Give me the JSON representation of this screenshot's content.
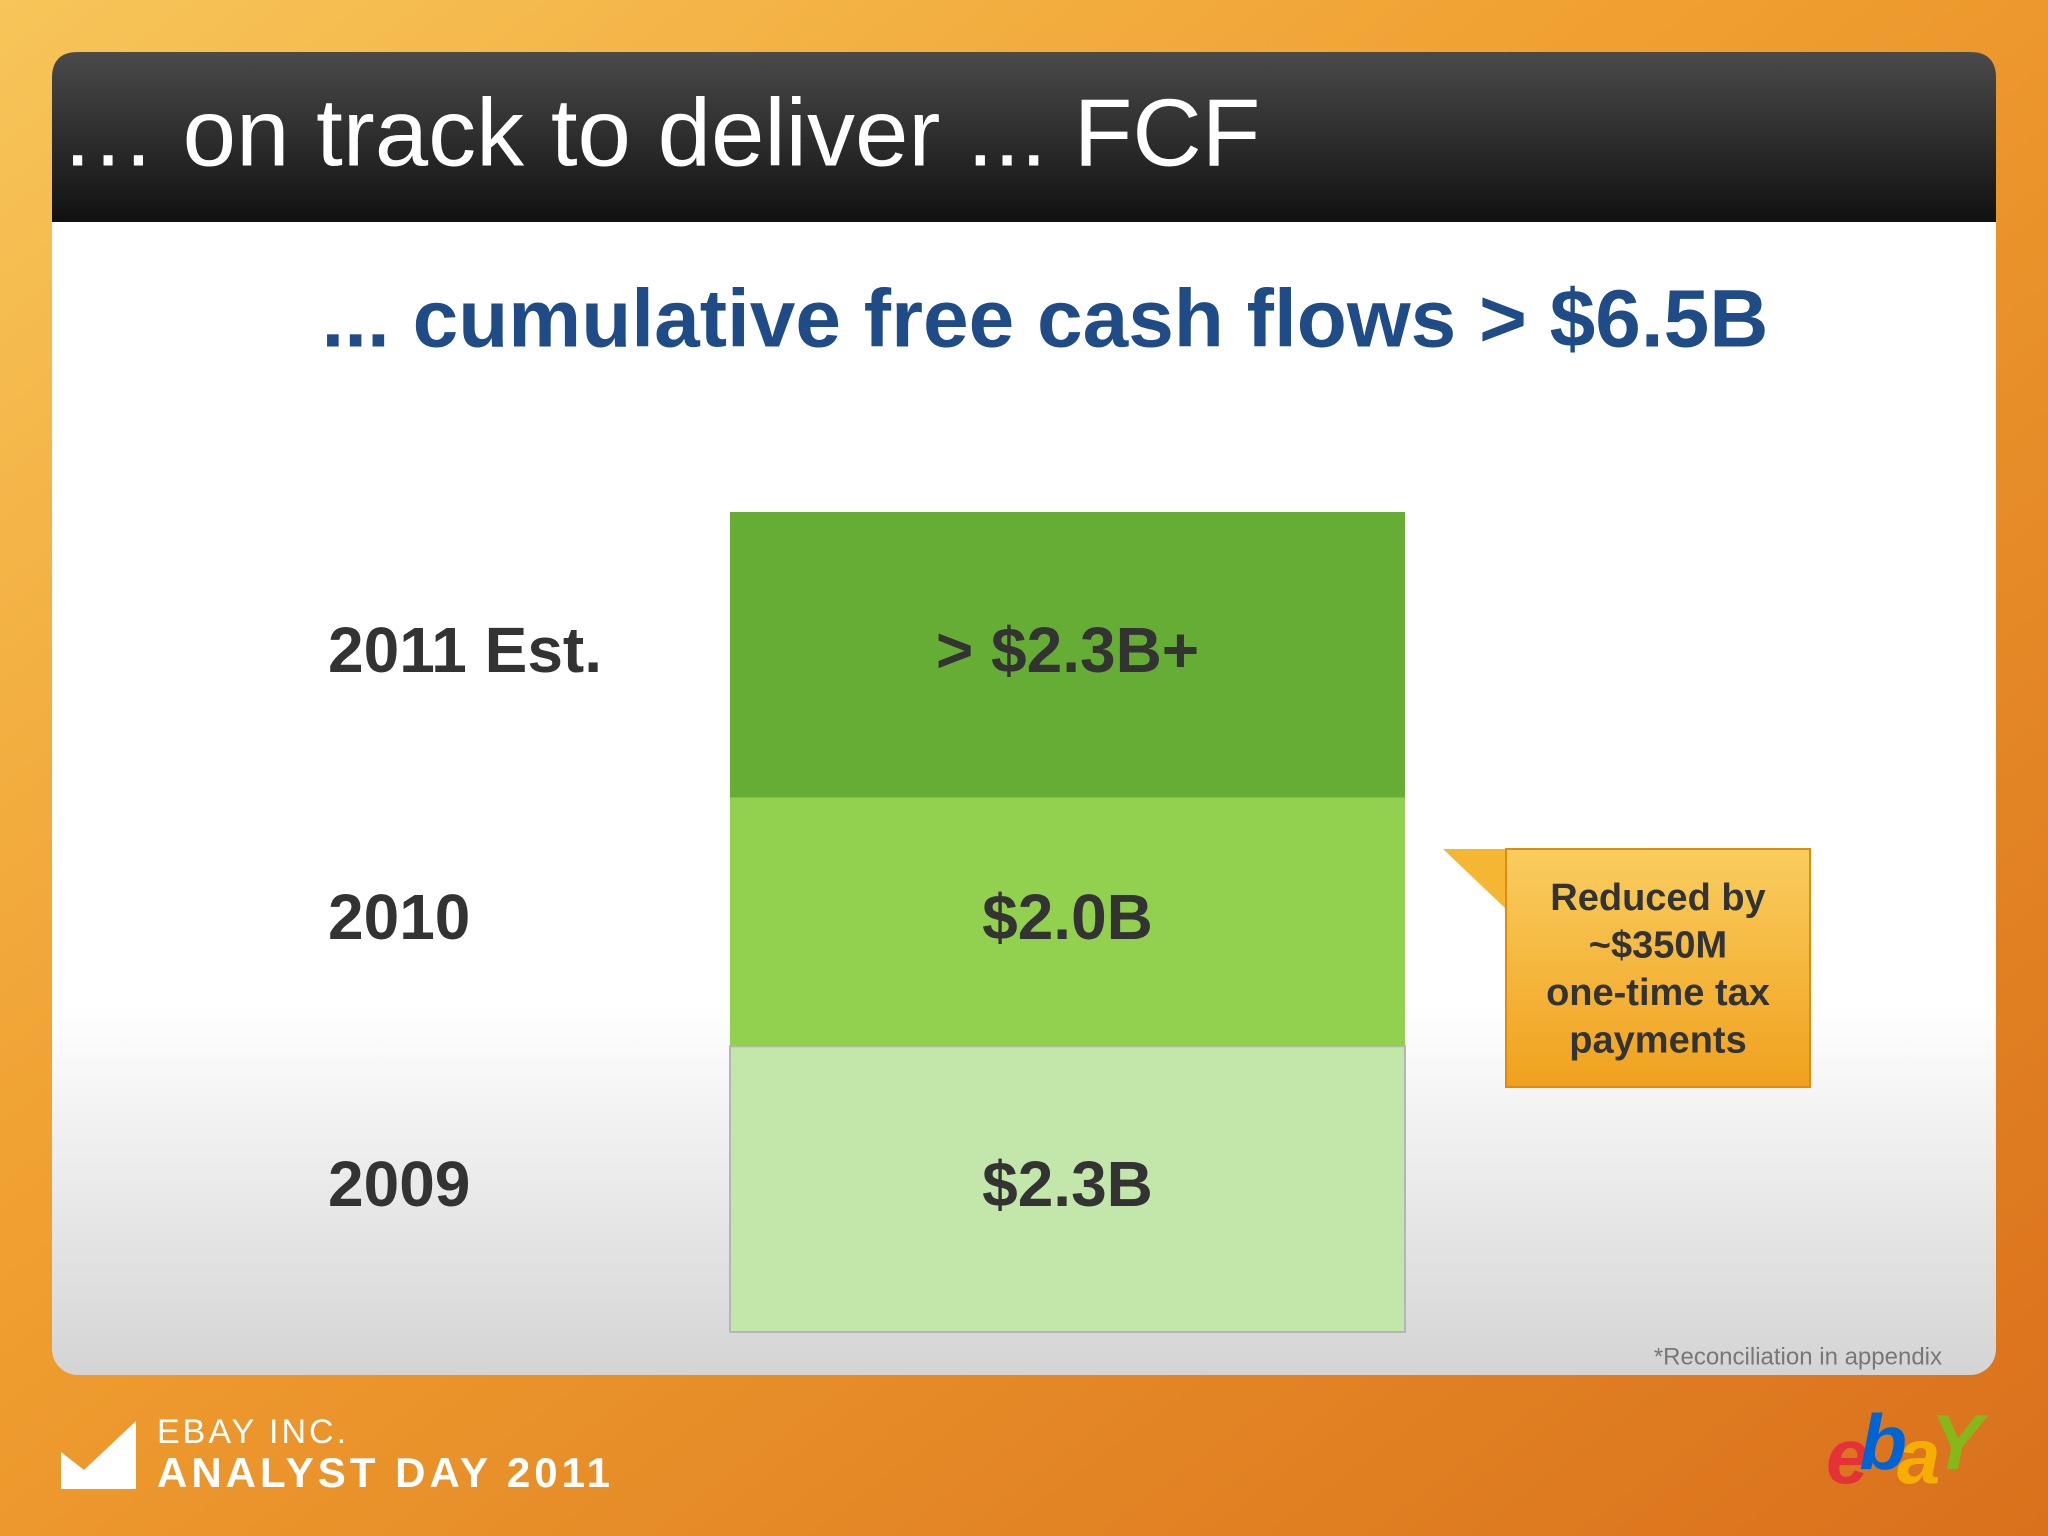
{
  "chart_data": {
    "type": "stacked-bar",
    "title": "… on track to deliver ... FCF",
    "subtitle": "... cumulative free cash flows > $6.5B",
    "series": [
      {
        "name": "2009",
        "color": "#c3e6aa",
        "values": [
          2.3
        ],
        "value_labels": [
          "$2.3B"
        ]
      },
      {
        "name": "2010",
        "color": "#92d050",
        "values": [
          2.0
        ],
        "value_labels": [
          "$2.0B"
        ]
      },
      {
        "name": "2011 Est.",
        "color": "#66ad36",
        "values": [
          2.3
        ],
        "value_labels": [
          "> $2.3B+"
        ]
      }
    ],
    "annotations": [
      {
        "series": 1,
        "lines": [
          "Reduced by",
          "~$350M",
          "one-time tax",
          "payments"
        ]
      }
    ],
    "footnote": "*Reconciliation in appendix"
  },
  "footer": {
    "company": "EBAY INC.",
    "event": "ANALYST DAY 2011",
    "logo": [
      {
        "text": "e",
        "color": "#e53238"
      },
      {
        "text": "b",
        "color": "#0064d2"
      },
      {
        "text": "a",
        "color": "#f5af02"
      },
      {
        "text": "Y",
        "color": "#86b817"
      }
    ]
  }
}
